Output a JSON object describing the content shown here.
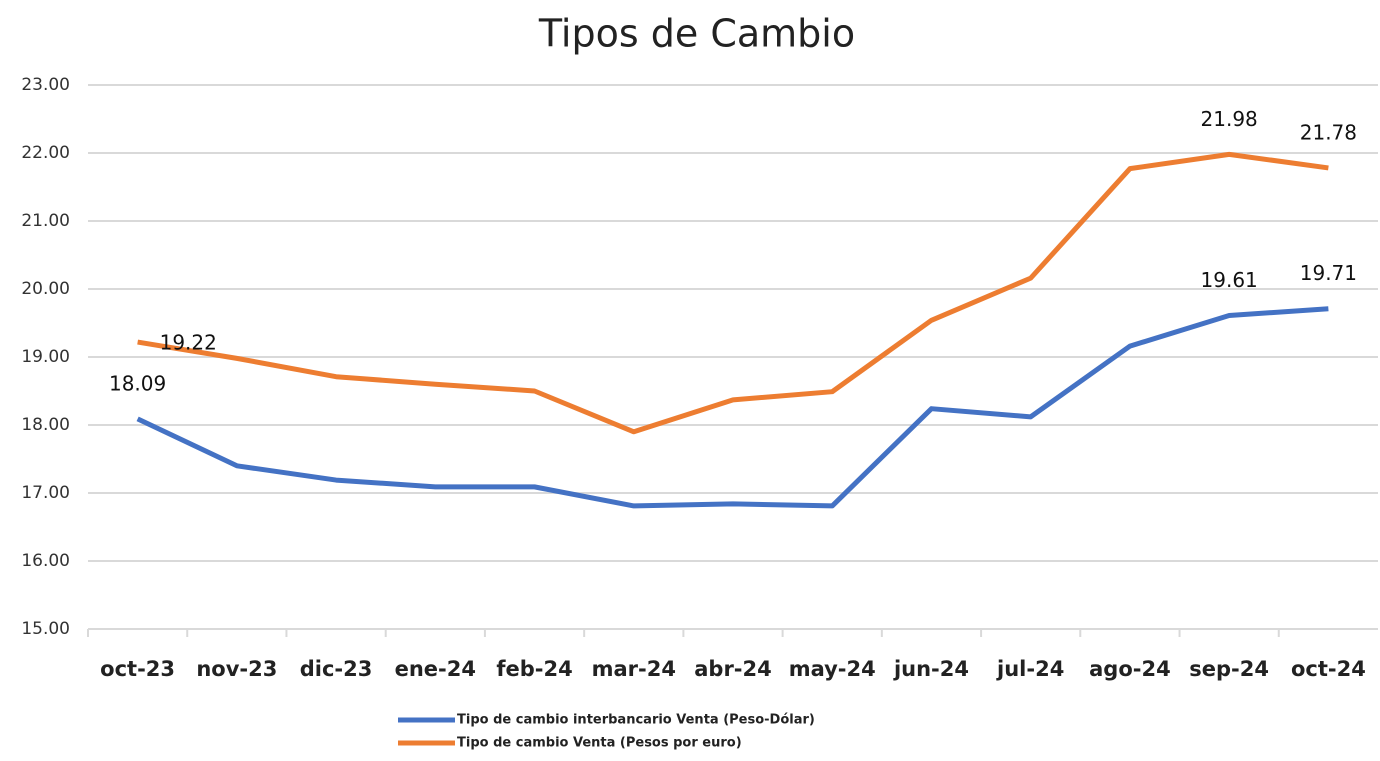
{
  "chart_data": {
    "type": "line",
    "title": "Tipos de Cambio",
    "categories": [
      "oct-23",
      "nov-23",
      "dic-23",
      "ene-24",
      "feb-24",
      "mar-24",
      "abr-24",
      "may-24",
      "jun-24",
      "jul-24",
      "ago-24",
      "sep-24",
      "oct-24"
    ],
    "series": [
      {
        "name": "Tipo de cambio interbancario Venta (Peso-Dólar)",
        "color": "#4472c4",
        "values": [
          18.09,
          17.4,
          17.19,
          17.09,
          17.09,
          16.81,
          16.84,
          16.81,
          18.24,
          18.12,
          19.16,
          19.61,
          19.71
        ],
        "value_labels": [
          "18.09",
          null,
          null,
          null,
          null,
          null,
          null,
          null,
          null,
          null,
          null,
          "19.61",
          "19.71"
        ]
      },
      {
        "name": "Tipo de cambio Venta (Pesos por euro)",
        "color": "#ed7d31",
        "values": [
          19.22,
          18.98,
          18.71,
          18.6,
          18.5,
          17.9,
          18.37,
          18.49,
          19.54,
          20.16,
          21.77,
          21.98,
          21.78
        ],
        "value_labels": [
          "19.22",
          null,
          null,
          null,
          null,
          null,
          null,
          null,
          null,
          null,
          null,
          "21.98",
          "21.78"
        ]
      }
    ],
    "ylim": [
      15,
      23
    ],
    "yticks": [
      {
        "value": 15,
        "label": "15.00"
      },
      {
        "value": 16,
        "label": "16.00"
      },
      {
        "value": 17,
        "label": "17.00"
      },
      {
        "value": 18,
        "label": "18.00"
      },
      {
        "value": 19,
        "label": "19.00"
      },
      {
        "value": 20,
        "label": "20.00"
      },
      {
        "value": 21,
        "label": "21.00"
      },
      {
        "value": 22,
        "label": "22.00"
      },
      {
        "value": 23,
        "label": "23.00"
      }
    ],
    "grid": true,
    "legend": "bottom"
  }
}
